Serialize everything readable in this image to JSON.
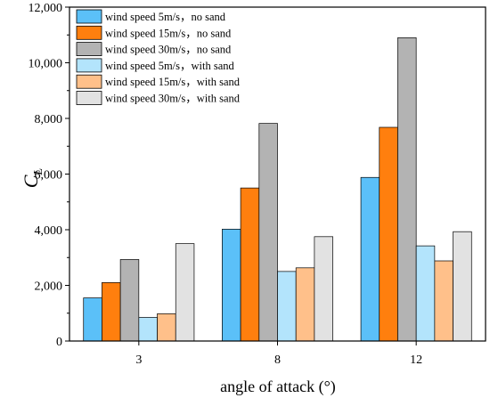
{
  "chart_data": {
    "type": "bar",
    "title": "",
    "xlabel": "angle of attack (°)",
    "ylabel_main": "C",
    "ylabel_sub": "L",
    "categories": [
      "3",
      "8",
      "12"
    ],
    "ylim": [
      0,
      12000
    ],
    "yticks": [
      0,
      2000,
      4000,
      6000,
      8000,
      10000,
      12000
    ],
    "ytick_labels": [
      "0",
      "2,000",
      "4,000",
      "6,000",
      "8,000",
      "10,000",
      "12,000"
    ],
    "grid": false,
    "legend_position": "top-left",
    "series": [
      {
        "name": "wind speed 5m/s，no sand",
        "color": "#5bc0f8",
        "values": [
          1550,
          4020,
          5880
        ]
      },
      {
        "name": "wind speed 15m/s，no sand",
        "color": "#ff7f0e",
        "values": [
          2100,
          5500,
          7680
        ]
      },
      {
        "name": "wind speed 30m/s，no sand",
        "color": "#b3b3b3",
        "values": [
          2930,
          7820,
          10900
        ]
      },
      {
        "name": "wind speed 5m/s，with sand",
        "color": "#b3e4fc",
        "values": [
          850,
          2500,
          3420
        ]
      },
      {
        "name": "wind speed 15m/s，with sand",
        "color": "#ffc08a",
        "values": [
          980,
          2630,
          2880
        ]
      },
      {
        "name": "wind speed 30m/s，with sand",
        "color": "#e2e2e2",
        "values": [
          3500,
          3750,
          3930
        ]
      }
    ]
  }
}
